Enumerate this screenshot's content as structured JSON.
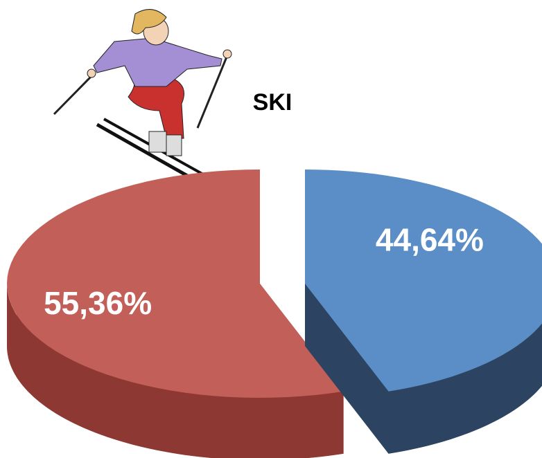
{
  "chart_data": {
    "type": "pie3d",
    "title": "SKI",
    "values": [
      44.64,
      55.36
    ],
    "value_labels": [
      "44,64%",
      "55,36%"
    ],
    "colors": [
      "#5b8ec6",
      "#c35f59"
    ],
    "side_colors": [
      "#2c4461",
      "#8e3833"
    ]
  }
}
